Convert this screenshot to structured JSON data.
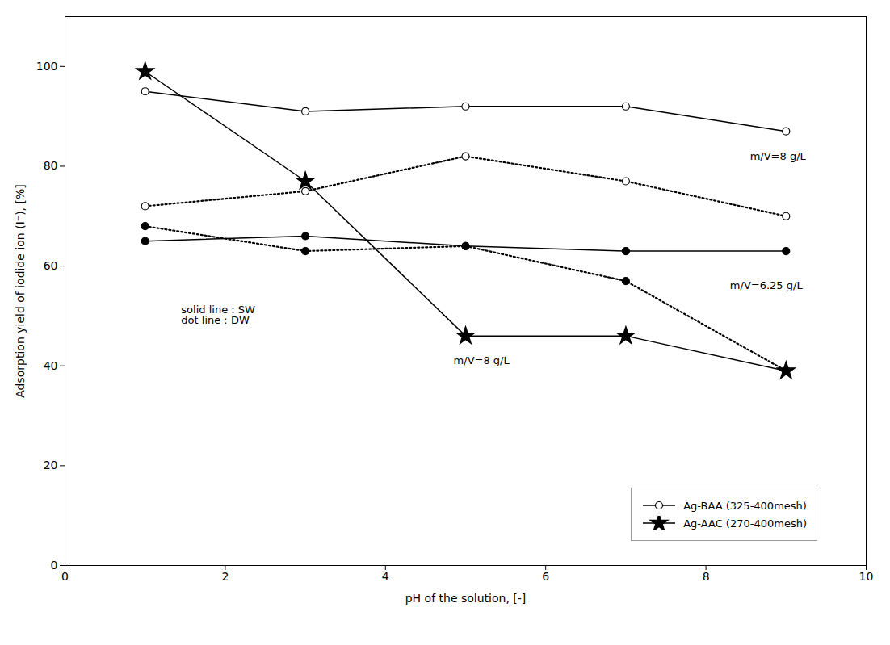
{
  "chart_data": {
    "type": "line",
    "xlabel": "pH of the solution, [-]",
    "ylabel": "Adsorption yield of iodide ion (I⁻), [%]",
    "xlim": [
      0,
      10
    ],
    "ylim": [
      0,
      110
    ],
    "xticks": [
      0,
      2,
      4,
      6,
      8,
      10
    ],
    "yticks": [
      0,
      20,
      40,
      60,
      80,
      100
    ],
    "grid": false,
    "legend": "lower right",
    "annotations": [
      {
        "text": "solid line : SW\ndot line : DW",
        "x": 1.45,
        "y": 52
      },
      {
        "text": "m/V=8 g/L",
        "x": 8.55,
        "y": 82
      },
      {
        "text": "m/V=6.25 g/L",
        "x": 8.3,
        "y": 56
      },
      {
        "text": "m/V=8 g/L",
        "x": 4.85,
        "y": 41
      }
    ],
    "series": [
      {
        "name": "Ag-BAA (325-400mesh)",
        "x": [
          1,
          3,
          5,
          7,
          9
        ],
        "values": [
          95,
          91,
          92,
          92,
          87
        ],
        "line_style": "solid",
        "marker": "circle_open",
        "color": "black"
      },
      {
        "x": [
          1,
          3,
          5,
          7,
          9
        ],
        "values": [
          72,
          75,
          82,
          77,
          70
        ],
        "line_style": "dotted",
        "marker": "circle_open",
        "color": "black"
      },
      {
        "name": "Ag-AAC (270-400mesh)",
        "x": [
          1,
          3,
          5,
          7,
          9
        ],
        "values": [
          99,
          77,
          46,
          46,
          39
        ],
        "line_style": "solid",
        "marker": "star",
        "color": "black"
      },
      {
        "x": [
          1,
          3,
          5,
          7,
          9
        ],
        "values": [
          65,
          66,
          64,
          63,
          63
        ],
        "line_style": "solid",
        "marker": "circle",
        "color": "black"
      },
      {
        "x": [
          1,
          3,
          5,
          7,
          9
        ],
        "values": [
          68,
          63,
          64,
          57,
          39
        ],
        "line_style": "dotted",
        "marker": "circle",
        "color": "black"
      }
    ]
  }
}
